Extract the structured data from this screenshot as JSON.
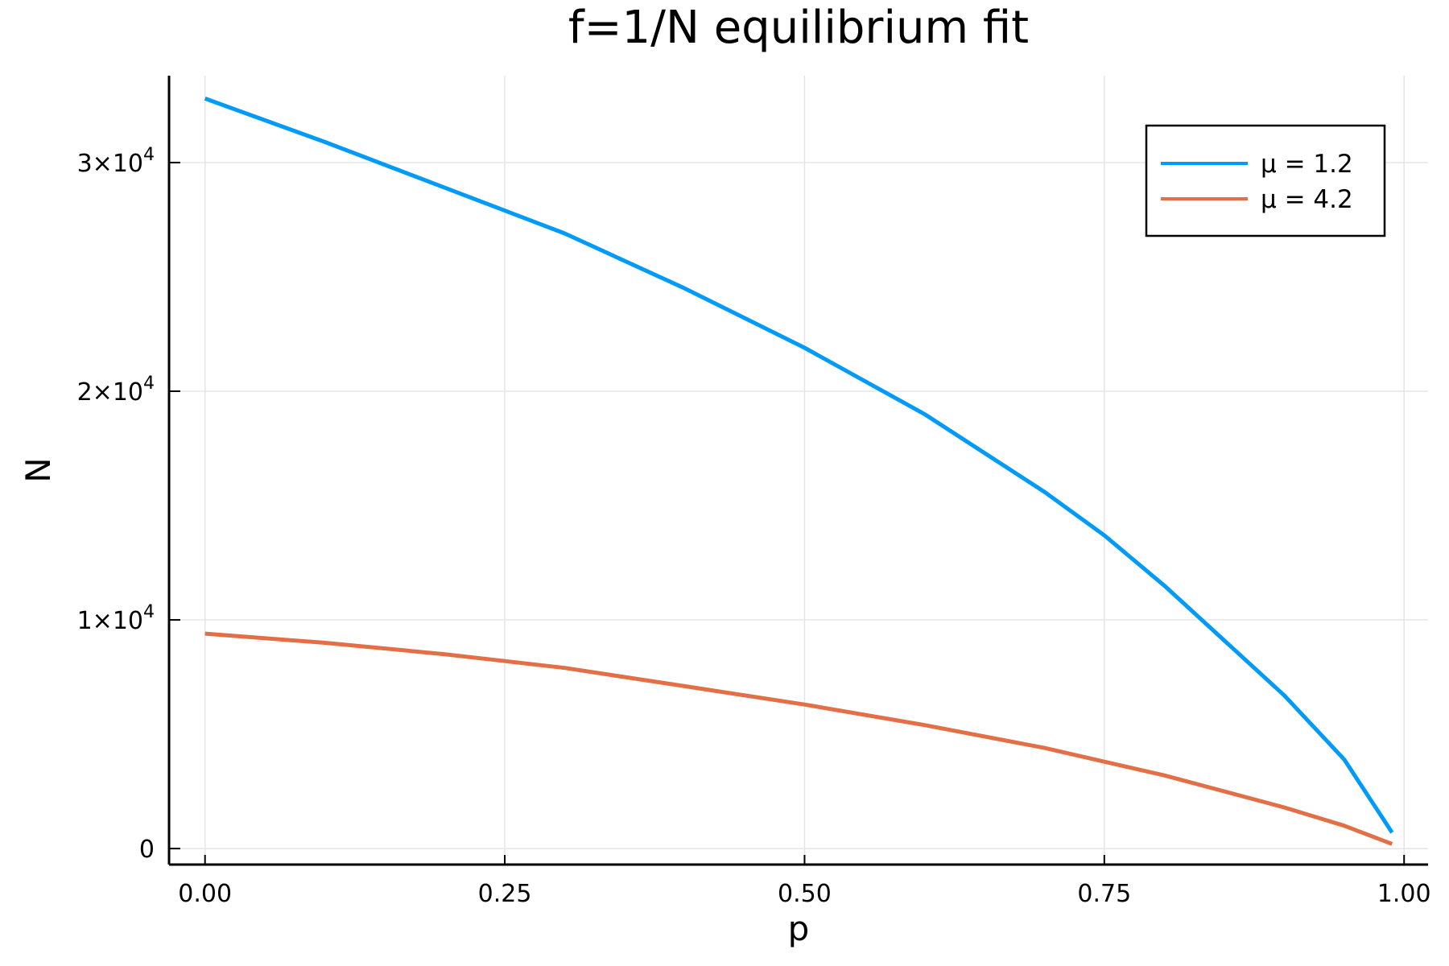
{
  "chart_data": {
    "type": "line",
    "title": "f=1/N equilibrium fit",
    "xlabel": "p",
    "ylabel": "N",
    "xlim": [
      -0.03,
      1.02
    ],
    "ylim": [
      -700,
      33800
    ],
    "xticks": [
      0.0,
      0.25,
      0.5,
      0.75,
      1.0
    ],
    "xtick_labels": [
      "0.00",
      "0.25",
      "0.50",
      "0.75",
      "1.00"
    ],
    "yticks": [
      0,
      10000,
      20000,
      30000
    ],
    "ytick_labels": [
      {
        "mantissa": "0",
        "exp": ""
      },
      {
        "mantissa": "1×10",
        "exp": "4"
      },
      {
        "mantissa": "2×10",
        "exp": "4"
      },
      {
        "mantissa": "3×10",
        "exp": "4"
      }
    ],
    "grid": true,
    "legend_position": "top-right",
    "series": [
      {
        "name": "μ = 1.2",
        "color": "#009af9",
        "x": [
          0.0,
          0.1,
          0.2,
          0.25,
          0.3,
          0.4,
          0.5,
          0.6,
          0.7,
          0.75,
          0.8,
          0.9,
          0.95,
          0.99
        ],
        "y": [
          32800,
          30900,
          28900,
          27900,
          26900,
          24500,
          21900,
          19000,
          15600,
          13700,
          11500,
          6700,
          3900,
          700
        ]
      },
      {
        "name": "μ = 4.2",
        "color": "#e26f46",
        "x": [
          0.0,
          0.1,
          0.2,
          0.25,
          0.3,
          0.4,
          0.5,
          0.6,
          0.7,
          0.75,
          0.8,
          0.9,
          0.95,
          0.99
        ],
        "y": [
          9400,
          9000,
          8500,
          8200,
          7900,
          7100,
          6300,
          5400,
          4400,
          3800,
          3200,
          1800,
          1000,
          200
        ]
      }
    ]
  }
}
